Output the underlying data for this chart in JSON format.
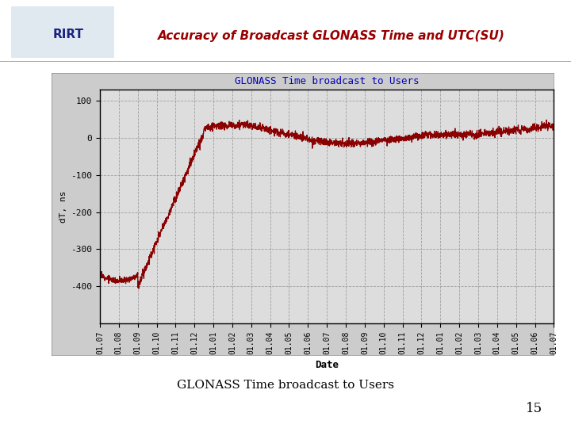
{
  "title_main": "Accuracy of Broadcast GLONASS Time and UTC(SU)",
  "chart_title": "GLONASS Time broadcast to Users",
  "xlabel": "Date",
  "ylabel": "dT, ns",
  "caption": "GLONASS Time broadcast to Users",
  "page_number": "15",
  "ylim": [
    -500,
    130
  ],
  "yticks": [
    -400,
    -300,
    -200,
    -100,
    0,
    100
  ],
  "x_labels": [
    "01.07",
    "01.08",
    "01.09",
    "01.10",
    "01.11",
    "01.12",
    "01.01",
    "01.02",
    "01.03",
    "01.04",
    "01.05",
    "01.06",
    "01.07",
    "01.08",
    "01.09",
    "01.10",
    "01.11",
    "01.12",
    "01.01",
    "01.02",
    "01.03",
    "01.04",
    "01.05",
    "01.06",
    "01.07"
  ],
  "line_color": "#8B0000",
  "chart_bg": "#cccccc",
  "plot_bg": "#dddddd",
  "title_color": "#990000",
  "chart_title_color": "#0000bb",
  "grid_color": "#999999",
  "slide_bg": "#ffffff",
  "header_line_color": "#cccccc"
}
